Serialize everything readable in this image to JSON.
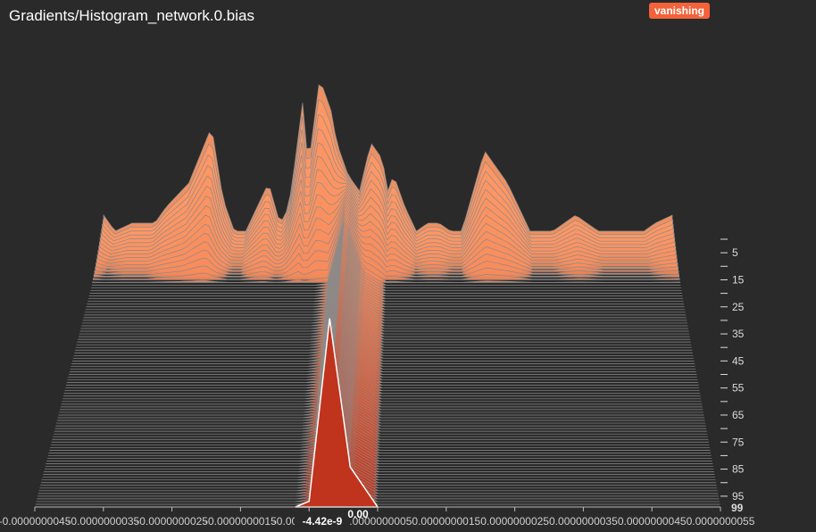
{
  "title": "Gradients/Histogram_network.0.bias",
  "badge": "vanishing",
  "colors": {
    "background": "#2a2a2a",
    "ridge_back": "#ff9966",
    "ridge_front": "#c0331d",
    "badge": "#f4623a"
  },
  "chart_data": {
    "type": "area",
    "mode": "ridgeline-histogram",
    "xlim": [
      -4.5e-09,
      5.5e-09
    ],
    "x_tick_labels": [
      "-0.0000000045",
      "-0.0000000035",
      "-0.0000000025",
      "-0.0000000015",
      "-0.0000000005",
      "0.0000000005",
      "0.0000000015",
      "0.0000000025",
      "0.0000000035",
      "0.0000000045",
      "0.0000000055"
    ],
    "y_steps": [
      0,
      99
    ],
    "y_tick_labels": [
      "5",
      "15",
      "25",
      "35",
      "45",
      "55",
      "65",
      "75",
      "85",
      "95"
    ],
    "y_last_label": "99",
    "hover": {
      "x_label": "-4.42e-9",
      "value_label": "0.00",
      "step": 99
    },
    "histogram_back": {
      "step": 0,
      "x": [
        -4.5e-09,
        -4.3e-09,
        -4e-09,
        -3.6e-09,
        -3.4e-09,
        -3e-09,
        -2.6e-09,
        -2.4e-09,
        -2.2e-09,
        -2e-09,
        -1.8e-09,
        -1.6e-09,
        -1.4e-09,
        -1.3e-09,
        -1.2e-09,
        -1e-09,
        -9e-10,
        -7e-10,
        -6e-10,
        -5e-10,
        -4e-10,
        -3e-10,
        -2e-10,
        0.0,
        2e-10,
        4e-10,
        5e-10,
        6e-10,
        8e-10,
        1e-09,
        1.2e-09,
        1.4e-09,
        1.6e-09,
        1.8e-09,
        2.2e-09,
        2.6e-09,
        3e-09,
        3.4e-09,
        3.8e-09,
        4.2e-09,
        4.6e-09,
        5e-09,
        5.2e-09,
        5.5e-09
      ],
      "y": [
        0.15,
        0.05,
        0.1,
        0.1,
        0.2,
        0.35,
        0.7,
        0.25,
        0.05,
        0.05,
        0.2,
        0.35,
        0.1,
        0.15,
        0.3,
        0.85,
        0.45,
        1.0,
        0.9,
        0.8,
        0.6,
        0.5,
        0.4,
        0.3,
        0.6,
        0.5,
        0.3,
        0.4,
        0.2,
        0.05,
        0.1,
        0.1,
        0.05,
        0.05,
        0.55,
        0.35,
        0.05,
        0.05,
        0.15,
        0.05,
        0.05,
        0.05,
        0.1,
        0.15
      ]
    },
    "histogram_front": {
      "step": 99,
      "x": [
        -7e-10,
        -5e-10,
        -2e-10,
        1e-10,
        5e-10
      ],
      "y": [
        0.0,
        0.02,
        0.66,
        0.14,
        0.0
      ]
    }
  }
}
